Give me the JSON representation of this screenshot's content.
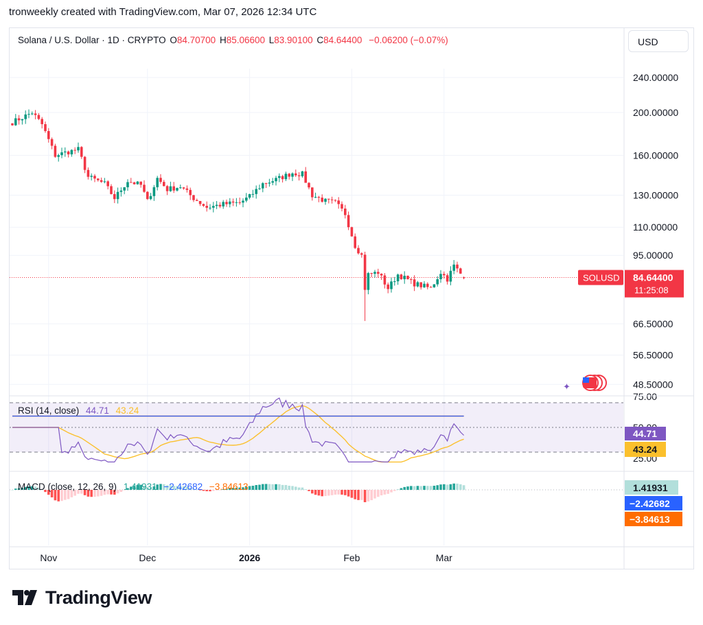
{
  "header": {
    "credit": "tronweekly created with TradingView.com, Mar 07, 2026 12:34 UTC"
  },
  "legend": {
    "title": "Solana / U.S. Dollar · 1D · CRYPTO",
    "open_label": "O",
    "open": "84.70700",
    "high_label": "H",
    "high": "85.06600",
    "low_label": "L",
    "low": "83.90100",
    "close_label": "C",
    "close": "84.64400",
    "change": "−0.06200 (−0.07%)"
  },
  "currency_button": "USD",
  "colors": {
    "up": "#089981",
    "down": "#f23645",
    "rsi": "#7e57c2",
    "rsi_ma": "#fbc02d",
    "macd": "#2962ff",
    "signal": "#ff6d00",
    "grid": "#f0f3fa",
    "text": "#131722"
  },
  "chart_data": [
    {
      "type": "candlestick",
      "title": "Solana / U.S. Dollar · 1D · CRYPTO",
      "x_ticks": [
        "Nov",
        "Dec",
        "2026",
        "Feb",
        "Mar"
      ],
      "y_scale": "log",
      "y_ticks": [
        "240.00000",
        "200.00000",
        "160.00000",
        "130.00000",
        "110.00000",
        "95.00000",
        "66.50000",
        "56.50000",
        "48.50000"
      ],
      "ylim": [
        46,
        260
      ],
      "last_price_label": "SOLUSD",
      "last_price": "84.64400",
      "countdown": "11:25:08",
      "close_anchors": [
        {
          "date": "2025-10-21",
          "close": 190
        },
        {
          "date": "2025-10-27",
          "close": 200
        },
        {
          "date": "2025-10-30",
          "close": 188
        },
        {
          "date": "2025-11-03",
          "close": 160
        },
        {
          "date": "2025-11-07",
          "close": 163
        },
        {
          "date": "2025-11-10",
          "close": 165
        },
        {
          "date": "2025-11-13",
          "close": 143
        },
        {
          "date": "2025-11-18",
          "close": 138
        },
        {
          "date": "2025-11-21",
          "close": 128
        },
        {
          "date": "2025-11-25",
          "close": 140
        },
        {
          "date": "2025-11-29",
          "close": 137
        },
        {
          "date": "2025-12-01",
          "close": 126
        },
        {
          "date": "2025-12-04",
          "close": 142
        },
        {
          "date": "2025-12-07",
          "close": 134
        },
        {
          "date": "2025-12-11",
          "close": 136
        },
        {
          "date": "2025-12-15",
          "close": 128
        },
        {
          "date": "2025-12-19",
          "close": 122
        },
        {
          "date": "2025-12-24",
          "close": 124
        },
        {
          "date": "2025-12-29",
          "close": 125
        },
        {
          "date": "2026-01-01",
          "close": 129
        },
        {
          "date": "2026-01-05",
          "close": 138
        },
        {
          "date": "2026-01-09",
          "close": 141
        },
        {
          "date": "2026-01-14",
          "close": 146
        },
        {
          "date": "2026-01-17",
          "close": 145
        },
        {
          "date": "2026-01-20",
          "close": 130
        },
        {
          "date": "2026-01-24",
          "close": 126
        },
        {
          "date": "2026-01-27",
          "close": 125
        },
        {
          "date": "2026-01-30",
          "close": 118
        },
        {
          "date": "2026-02-02",
          "close": 100
        },
        {
          "date": "2026-02-04",
          "close": 95
        },
        {
          "date": "2026-02-05",
          "close": 80
        },
        {
          "date": "2026-02-06",
          "close": 86
        },
        {
          "date": "2026-02-09",
          "close": 87
        },
        {
          "date": "2026-02-12",
          "close": 80
        },
        {
          "date": "2026-02-15",
          "close": 86
        },
        {
          "date": "2026-02-20",
          "close": 82
        },
        {
          "date": "2026-02-25",
          "close": 80
        },
        {
          "date": "2026-02-28",
          "close": 87
        },
        {
          "date": "2026-03-02",
          "close": 84
        },
        {
          "date": "2026-03-04",
          "close": 90
        },
        {
          "date": "2026-03-07",
          "close": 84.644
        }
      ]
    },
    {
      "type": "line",
      "name": "RSI",
      "legend": "RSI (14, close)",
      "rsi_value": "44.71",
      "ma_value": "43.24",
      "y_ticks": [
        "75.00",
        "50.00",
        "25.00"
      ],
      "bands": [
        30,
        70
      ],
      "ylim": [
        22,
        76
      ]
    },
    {
      "type": "bar",
      "name": "MACD",
      "legend": "MACD (close, 12, 26, 9)",
      "histogram": "1.41931",
      "macd": "−2.42682",
      "signal": "−3.84613"
    }
  ]
}
